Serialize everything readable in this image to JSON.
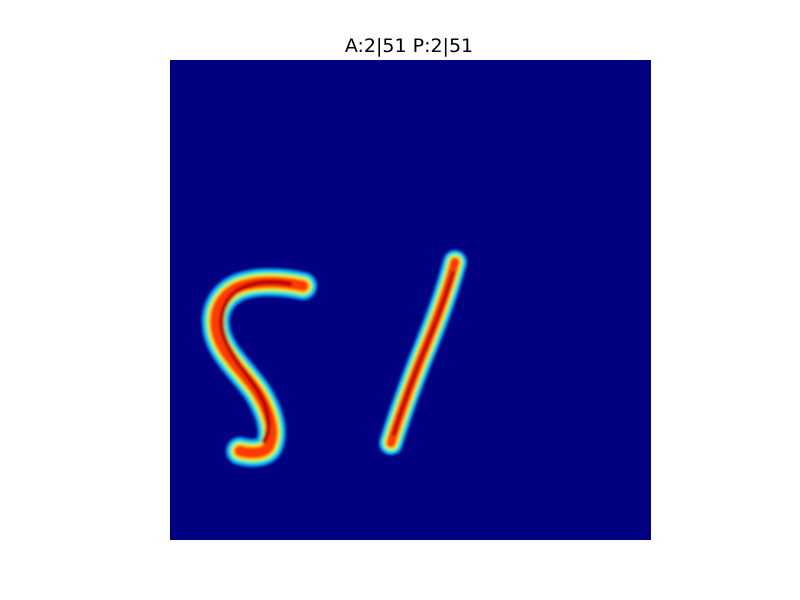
{
  "figure": {
    "title": "A:2|51 P:2|51",
    "colormap": "jet",
    "background_color": "#000080"
  }
}
